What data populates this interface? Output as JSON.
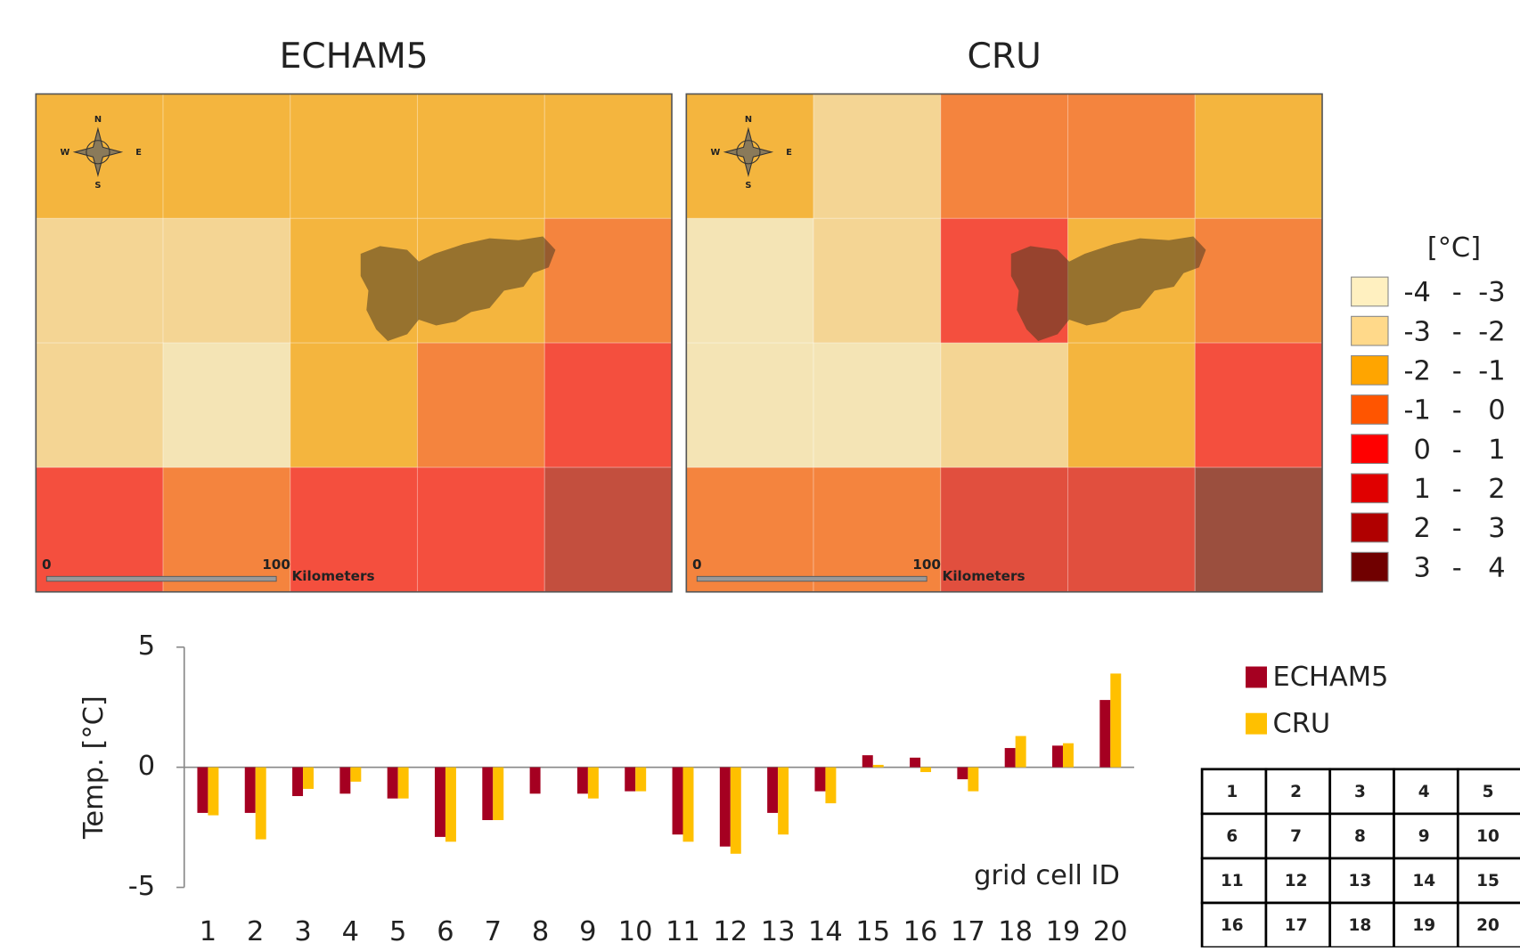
{
  "chart_data": {
    "type": "bar",
    "categories": [
      "1",
      "2",
      "3",
      "4",
      "5",
      "6",
      "7",
      "8",
      "9",
      "10",
      "11",
      "12",
      "13",
      "14",
      "15",
      "16",
      "17",
      "18",
      "19",
      "20"
    ],
    "series": [
      {
        "name": "ECHAM5",
        "color": "#a50021",
        "values": [
          -1.9,
          -1.9,
          -1.2,
          -1.1,
          -1.3,
          -2.9,
          -2.2,
          -1.1,
          -1.1,
          -1.0,
          -2.8,
          -3.3,
          -1.9,
          -1.0,
          0.5,
          0.4,
          -0.5,
          0.8,
          0.9,
          2.8
        ]
      },
      {
        "name": "CRU",
        "color": "#ffc000",
        "values": [
          -2.0,
          -3.0,
          -0.9,
          -0.6,
          -1.3,
          -3.1,
          -2.2,
          0,
          -1.3,
          -1.0,
          -3.1,
          -3.6,
          -2.8,
          -1.5,
          0.1,
          -0.2,
          -1.0,
          1.3,
          1.0,
          3.9
        ]
      }
    ],
    "ylim": [
      -5,
      5
    ],
    "yticks": [
      -5,
      0,
      5
    ],
    "y_label": "Temp. [°C]",
    "x_label": "grid cell ID",
    "map_legend": {
      "title": "[°C]",
      "separator": "-",
      "classes": [
        {
          "from": -4,
          "to": -3,
          "color": "#fff0c0"
        },
        {
          "from": -3,
          "to": -2,
          "color": "#ffd98a"
        },
        {
          "from": -2,
          "to": -1,
          "color": "#ffa500"
        },
        {
          "from": -1,
          "to": 0,
          "color": "#ff5500"
        },
        {
          "from": 0,
          "to": 1,
          "color": "#ff0000"
        },
        {
          "from": 1,
          "to": 2,
          "color": "#e00000"
        },
        {
          "from": 2,
          "to": 3,
          "color": "#b00000"
        },
        {
          "from": 3,
          "to": 4,
          "color": "#700000"
        }
      ]
    },
    "compass": [
      "N",
      "E",
      "S",
      "W"
    ],
    "scalebar": {
      "ticks": [
        0,
        100
      ],
      "unit": "Kilometers"
    },
    "cell_id_table": [
      [
        1,
        2,
        3,
        4,
        5
      ],
      [
        6,
        7,
        8,
        9,
        10
      ],
      [
        11,
        12,
        13,
        14,
        15
      ],
      [
        16,
        17,
        18,
        19,
        20
      ]
    ]
  }
}
